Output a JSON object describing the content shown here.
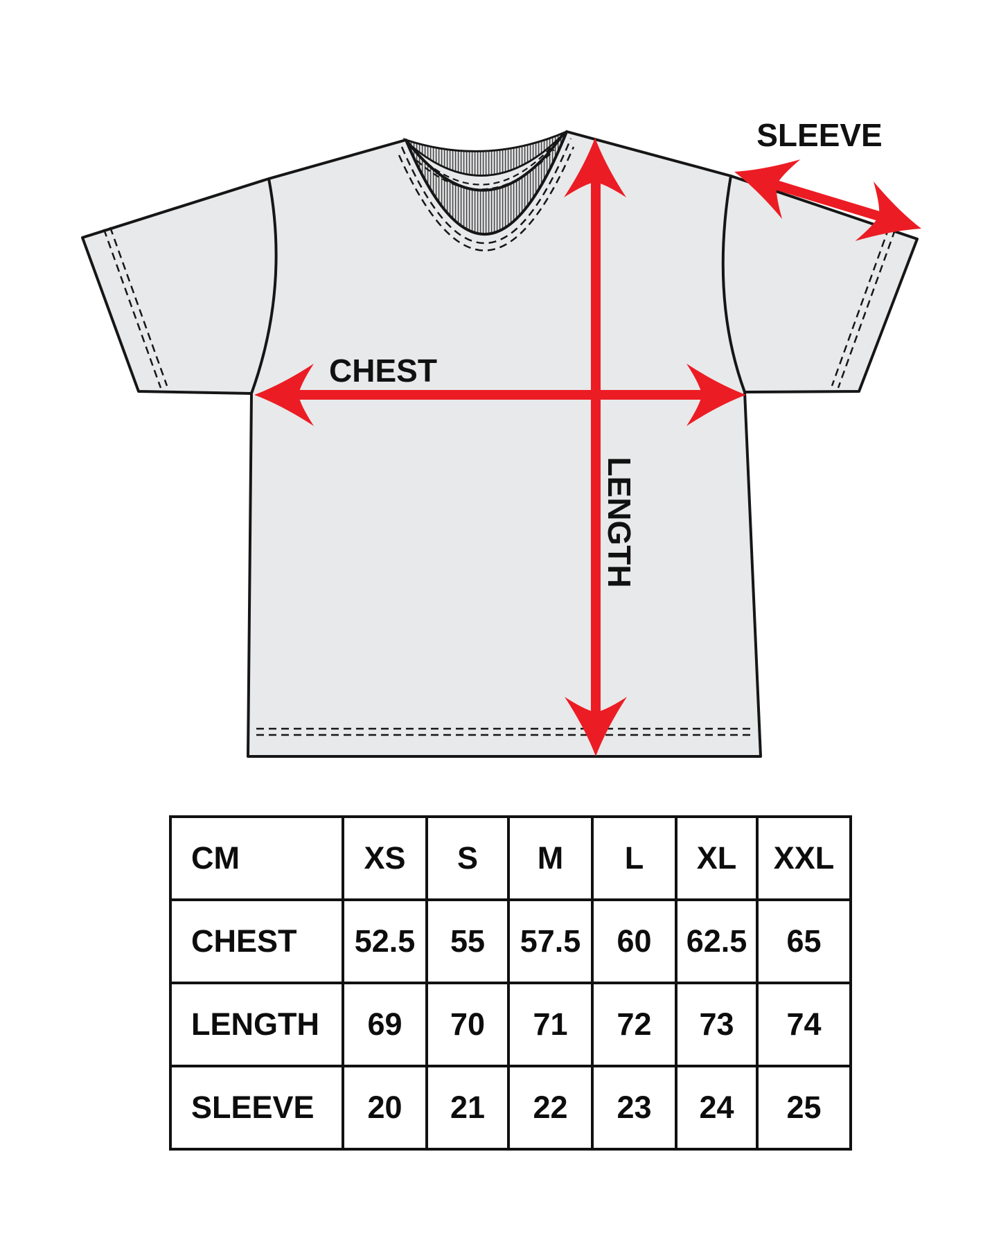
{
  "diagram": {
    "sleeve_label": "SLEEVE",
    "chest_label": "CHEST",
    "length_label": "LENGTH",
    "accent_color": "#EC1C24",
    "shirt_fill": "#E8E9EA",
    "outline_color": "#161616"
  },
  "size_table": {
    "unit_label": "CM",
    "columns": [
      "XS",
      "S",
      "M",
      "L",
      "XL",
      "XXL"
    ],
    "rows": [
      {
        "label": "CHEST",
        "values": [
          "52.5",
          "55",
          "57.5",
          "60",
          "62.5",
          "65"
        ]
      },
      {
        "label": "LENGTH",
        "values": [
          "69",
          "70",
          "71",
          "72",
          "73",
          "74"
        ]
      },
      {
        "label": "SLEEVE",
        "values": [
          "20",
          "21",
          "22",
          "23",
          "24",
          "25"
        ]
      }
    ]
  }
}
